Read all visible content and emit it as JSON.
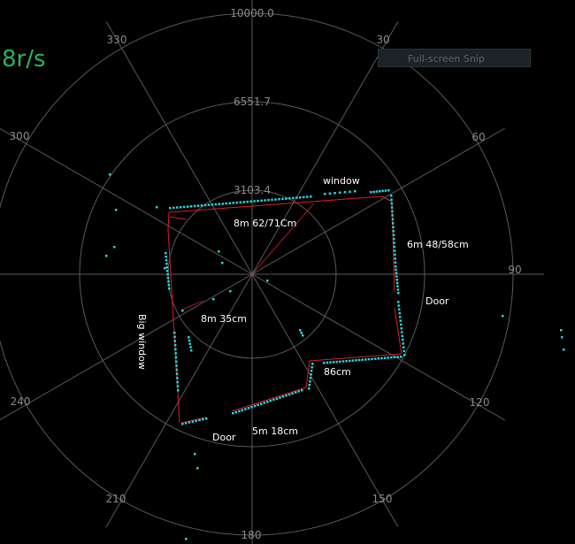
{
  "radar": {
    "ring_labels": [
      "10000.0",
      "6551.7",
      "3103.4"
    ],
    "angle_labels": [
      "30",
      "60",
      "90",
      "120",
      "150",
      "180",
      "210",
      "240",
      "300",
      "330"
    ],
    "colors": {
      "grid": "#5a5a5a",
      "ring_label": "#8a8a8a",
      "scan_point": "#24d6e0",
      "outline": "#e01e1e",
      "speed": "#29b35a"
    }
  },
  "speed_label": "8r/s",
  "snip_hint": "Full-screen Snip",
  "annotations": {
    "window": "window",
    "wall_top": "8m 62/71Cm",
    "wall_right": "6m  48/58cm",
    "door_right": "Door",
    "big_window": "Big window",
    "wall_left": "8m 35cm",
    "step": "86cm",
    "door_bottom": "Door",
    "wall_bottom": "5m 18cm"
  }
}
